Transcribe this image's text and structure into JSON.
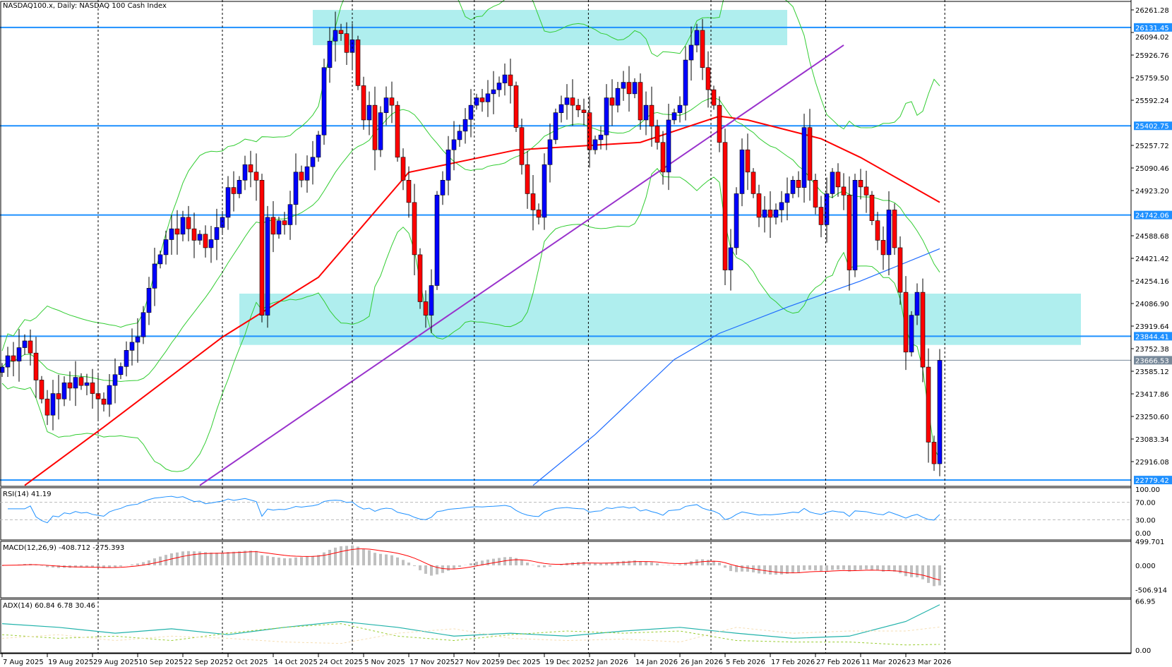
{
  "header": {
    "title": "NASDAQ100.x, Daily:  NASDAQ 100 Cash Index"
  },
  "indicators": {
    "rsi_label": "RSI(14) 41.19",
    "macd_label": "MACD(12,26,9) -408.712 -275.393",
    "adx_label": "ADX(14) 60.84 6.78 30.46"
  },
  "colors": {
    "up_candle": "#0000ff",
    "down_candle": "#ff0000",
    "bollinger": "#32cd32",
    "ma_red": "#ff0000",
    "ma_blue": "#1e6bff",
    "trendline": "#9932cc",
    "level_line": "#1e90ff",
    "zone": "#afeeee",
    "current_price": "#778899",
    "macd_hist": "#c0c0c0",
    "adx_main": "#20b2aa",
    "plus_di": "#9acd32",
    "minus_di": "#f5deb3"
  },
  "chart_data": {
    "type": "candlestick",
    "title": "NASDAQ100.x, Daily:  NASDAQ 100 Cash Index",
    "y_range": [
      22700,
      26300
    ],
    "y_ticks": [
      "26261.28",
      "26094.02",
      "25926.76",
      "25759.50",
      "25592.24",
      "25257.72",
      "25090.46",
      "24923.20",
      "24588.68",
      "24421.42",
      "24254.16",
      "24086.90",
      "23919.64",
      "23752.38",
      "23585.12",
      "23417.86",
      "23250.60",
      "23083.34",
      "22916.08"
    ],
    "x_labels": [
      "7 Aug 2025",
      "19 Aug 2025",
      "29 Aug 2025",
      "10 Sep 2025",
      "22 Sep 2025",
      "2 Oct 2025",
      "14 Oct 2025",
      "24 Oct 2025",
      "5 Nov 2025",
      "17 Nov 2025",
      "27 Nov 2025",
      "9 Dec 2025",
      "19 Dec 2025",
      "2 Jan 2026",
      "14 Jan 2026",
      "26 Jan 2026",
      "5 Feb 2026",
      "17 Feb 2026",
      "27 Feb 2026",
      "11 Mar 2026",
      "23 Mar 2026"
    ],
    "closes": [
      23616,
      23700,
      23660,
      23760,
      23810,
      23720,
      23520,
      23380,
      23260,
      23420,
      23380,
      23500,
      23460,
      23540,
      23480,
      23500,
      23420,
      23380,
      23340,
      23480,
      23560,
      23620,
      23740,
      23800,
      23840,
      24020,
      24200,
      24380,
      24448,
      24560,
      24640,
      24600,
      24725,
      24640,
      24555,
      24600,
      24500,
      24560,
      24650,
      24725,
      24946,
      24900,
      25000,
      25115,
      25060,
      25000,
      24000,
      24725,
      24600,
      24700,
      24670,
      24820,
      25060,
      25000,
      25100,
      25170,
      25335,
      25834,
      26030,
      26110,
      26085,
      25946,
      26040,
      25700,
      25446,
      25555,
      25225,
      25500,
      25610,
      25555,
      25170,
      25000,
      24835,
      24448,
      24100,
      24000,
      24220,
      24890,
      25000,
      25225,
      25300,
      25363,
      25450,
      25555,
      25610,
      25580,
      25640,
      25670,
      25720,
      25780,
      25700,
      25390,
      25115,
      24900,
      24780,
      24725,
      25115,
      25300,
      25500,
      25560,
      25610,
      25555,
      25520,
      25500,
      25225,
      25300,
      25335,
      25610,
      25555,
      25680,
      25725,
      25640,
      25725,
      25446,
      25555,
      25400,
      25280,
      25060,
      25446,
      25500,
      25555,
      25890,
      26000,
      26110,
      25834,
      25670,
      25555,
      25280,
      24335,
      24500,
      24900,
      25225,
      25060,
      24900,
      24725,
      24780,
      24725,
      24780,
      24835,
      24900,
      25000,
      24946,
      25390,
      25000,
      24800,
      24670,
      24900,
      25060,
      24950,
      24890,
      24335,
      25000,
      24950,
      24890,
      24700,
      24555,
      24448,
      24780,
      24500,
      24170,
      23727,
      24000,
      24170,
      23616,
      23060,
      22900,
      23666
    ],
    "last_open": 22900,
    "ma_red_points": [
      [
        4,
        22740
      ],
      [
        18,
        23172
      ],
      [
        39,
        23838
      ],
      [
        56,
        24281
      ],
      [
        72,
        25058
      ],
      [
        91,
        25224
      ],
      [
        113,
        25280
      ],
      [
        127,
        25474
      ],
      [
        132,
        25446
      ],
      [
        145,
        25307
      ],
      [
        152,
        25168
      ],
      [
        166,
        24836
      ]
    ],
    "ma_blue_points": [
      [
        94,
        22740
      ],
      [
        105,
        23117
      ],
      [
        119,
        23672
      ],
      [
        127,
        23866
      ],
      [
        139,
        24060
      ],
      [
        152,
        24254
      ],
      [
        166,
        24492
      ]
    ],
    "trendline": [
      [
        35,
        22740
      ],
      [
        149,
        26000
      ]
    ],
    "levels": [
      "26131.45",
      "25402.75",
      "24742.06",
      "23844.41",
      "22779.42"
    ],
    "current_price": "23666.53",
    "zones": [
      {
        "from_bar": 55,
        "to_bar": 139,
        "low": 26000,
        "high": 26261
      },
      {
        "from_bar": 42,
        "to_bar": 191,
        "low": 23780,
        "high": 24160
      }
    ],
    "rsi": {
      "ticks": [
        "100.00",
        "70.00",
        "30.00",
        "0.00"
      ],
      "levels": [
        70,
        30
      ],
      "last": 41.19
    },
    "macd": {
      "ticks": [
        "499.701",
        "0.000",
        "-506.914"
      ],
      "range": [
        -506.914,
        499.701
      ],
      "last": [
        -408.712,
        -275.393
      ]
    },
    "adx": {
      "ticks": [
        "66.95",
        "0.00"
      ],
      "range": [
        0,
        66.95
      ],
      "adx": [
        [
          0,
          35
        ],
        [
          10,
          30
        ],
        [
          20,
          22
        ],
        [
          30,
          28
        ],
        [
          40,
          20
        ],
        [
          50,
          30
        ],
        [
          60,
          38
        ],
        [
          70,
          30
        ],
        [
          80,
          18
        ],
        [
          90,
          22
        ],
        [
          100,
          18
        ],
        [
          110,
          25
        ],
        [
          120,
          30
        ],
        [
          130,
          22
        ],
        [
          140,
          15
        ],
        [
          150,
          18
        ],
        [
          160,
          38
        ],
        [
          166,
          60.84
        ]
      ],
      "plus_di": [
        [
          0,
          20
        ],
        [
          10,
          15
        ],
        [
          20,
          18
        ],
        [
          30,
          12
        ],
        [
          40,
          22
        ],
        [
          50,
          30
        ],
        [
          60,
          35
        ],
        [
          70,
          18
        ],
        [
          80,
          12
        ],
        [
          90,
          20
        ],
        [
          100,
          25
        ],
        [
          110,
          22
        ],
        [
          120,
          25
        ],
        [
          130,
          12
        ],
        [
          140,
          10
        ],
        [
          150,
          10
        ],
        [
          160,
          6
        ],
        [
          166,
          6.78
        ]
      ],
      "minus_di": [
        [
          0,
          15
        ],
        [
          10,
          20
        ],
        [
          20,
          12
        ],
        [
          30,
          18
        ],
        [
          40,
          15
        ],
        [
          50,
          10
        ],
        [
          60,
          8
        ],
        [
          70,
          22
        ],
        [
          80,
          28
        ],
        [
          90,
          15
        ],
        [
          100,
          12
        ],
        [
          110,
          14
        ],
        [
          120,
          10
        ],
        [
          130,
          30
        ],
        [
          140,
          22
        ],
        [
          150,
          25
        ],
        [
          160,
          25
        ],
        [
          166,
          30.46
        ]
      ]
    }
  }
}
